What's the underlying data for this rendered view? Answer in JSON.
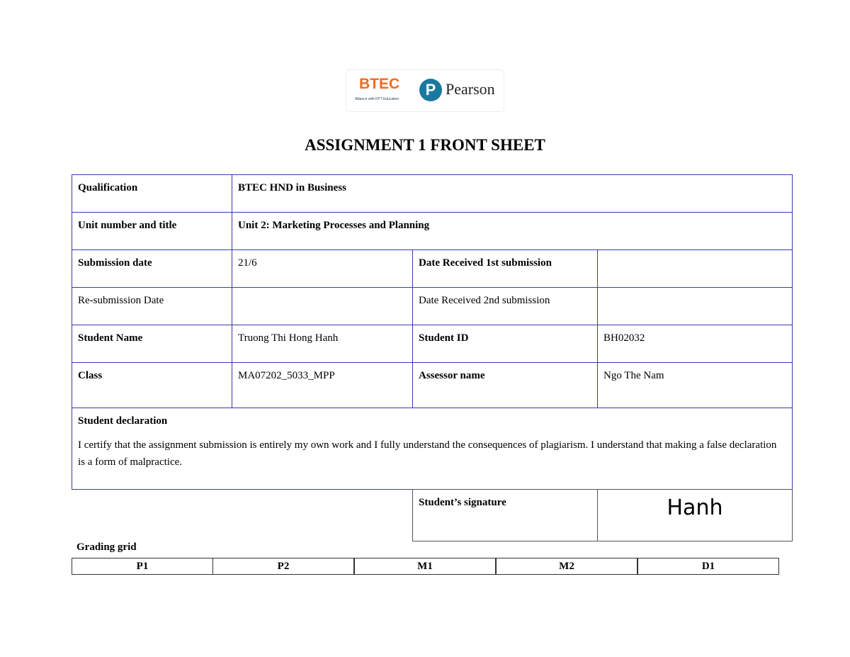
{
  "logo": {
    "btec": "BTEC",
    "fpt": "Alliance with FPT Education",
    "pearson": "Pearson",
    "pearson_mark": "P"
  },
  "title": "ASSIGNMENT 1 FRONT SHEET",
  "rows": {
    "qualification": {
      "label": "Qualification",
      "value": "BTEC HND in Business"
    },
    "unit": {
      "label": "Unit number and title",
      "value": "Unit 2: Marketing Processes and Planning"
    },
    "submission": {
      "label": "Submission date",
      "value": "21/6",
      "label2": "Date Received 1st submission",
      "value2": ""
    },
    "resubmission": {
      "label": "Re-submission Date",
      "value": "",
      "label2": "Date Received 2nd submission",
      "value2": ""
    },
    "student": {
      "label": "Student Name",
      "value": "Truong Thi Hong Hanh",
      "label2": "Student ID",
      "value2": "BH02032"
    },
    "class": {
      "label": "Class",
      "value": "MA07202_5033_MPP",
      "label2": "Assessor name",
      "value2": "Ngo The Nam"
    }
  },
  "declaration": {
    "heading": "Student declaration",
    "text": "I certify that the assignment submission is entirely my own work and I fully understand the consequences of plagiarism. I understand that making a false declaration is a form of malpractice."
  },
  "signature": {
    "label": "Student’s signature",
    "value": "Hanh"
  },
  "grading": {
    "label": "Grading grid",
    "columns": [
      "P1",
      "P2",
      "M1",
      "M2",
      "D1"
    ]
  }
}
